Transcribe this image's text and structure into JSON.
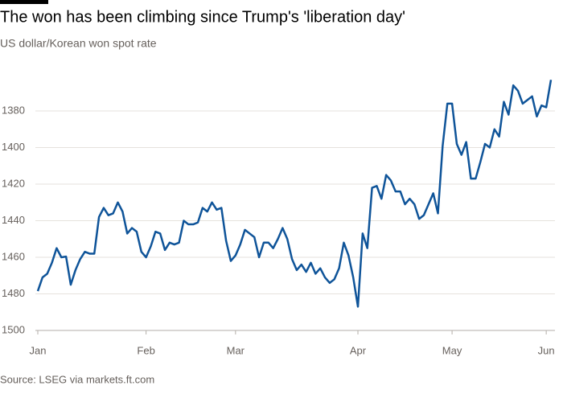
{
  "chart_data": {
    "type": "line",
    "title": "The won has been climbing since Trump's 'liberation day'",
    "subtitle": "US dollar/Korean won spot rate",
    "source": "Source: LSEG via markets.ft.com",
    "categories": [
      "Jan",
      null,
      null,
      null,
      null,
      null,
      null,
      null,
      null,
      null,
      null,
      null,
      null,
      null,
      null,
      null,
      null,
      null,
      null,
      null,
      null,
      null,
      null,
      "Feb",
      null,
      null,
      null,
      null,
      null,
      null,
      null,
      null,
      null,
      null,
      null,
      null,
      null,
      null,
      null,
      null,
      null,
      null,
      "Mar",
      null,
      null,
      null,
      null,
      null,
      null,
      null,
      null,
      null,
      null,
      null,
      null,
      null,
      null,
      null,
      null,
      null,
      null,
      null,
      null,
      null,
      null,
      null,
      null,
      null,
      "Apr",
      null,
      null,
      null,
      null,
      null,
      null,
      null,
      null,
      null,
      null,
      null,
      null,
      null,
      null,
      null,
      null,
      null,
      null,
      null,
      "May",
      null,
      null,
      null,
      null,
      null,
      null,
      null,
      null,
      null,
      null,
      null,
      null,
      null,
      null,
      null,
      null,
      null,
      null,
      null,
      "Jun",
      null
    ],
    "series": [
      {
        "name": "USD/KRW",
        "color": "#0f5499",
        "values": [
          1478.5,
          1471,
          1469,
          1463,
          1455,
          1460,
          1459.6,
          1475,
          1467,
          1461,
          1457,
          1458,
          1458,
          1438,
          1433,
          1437,
          1436,
          1430,
          1435,
          1447,
          1444,
          1446,
          1457,
          1460,
          1454,
          1446,
          1447,
          1456,
          1452,
          1453,
          1452,
          1440,
          1442,
          1442,
          1441,
          1433,
          1435,
          1430,
          1434,
          1433,
          1451,
          1462,
          1459,
          1453,
          1445,
          1447,
          1449,
          1460,
          1452,
          1452,
          1455,
          1450,
          1444,
          1450,
          1461,
          1467,
          1464,
          1468,
          1463,
          1469,
          1466,
          1471,
          1474,
          1472,
          1466,
          1452,
          1459,
          1471,
          1487,
          1447,
          1455,
          1422,
          1421,
          1428,
          1415,
          1418,
          1424,
          1424,
          1431,
          1428,
          1431,
          1439,
          1437,
          1431,
          1425,
          1436,
          1399,
          1376,
          1376,
          1398,
          1404,
          1397,
          1417,
          1417,
          1408,
          1398,
          1400,
          1390,
          1394,
          1375,
          1382,
          1366,
          1369,
          1376,
          1374,
          1372,
          1383,
          1377,
          1378,
          1363
        ]
      }
    ],
    "ylim": [
      1500,
      1360
    ],
    "yticks": [
      1380,
      1400,
      1420,
      1440,
      1460,
      1480,
      1500
    ],
    "grid": true
  }
}
